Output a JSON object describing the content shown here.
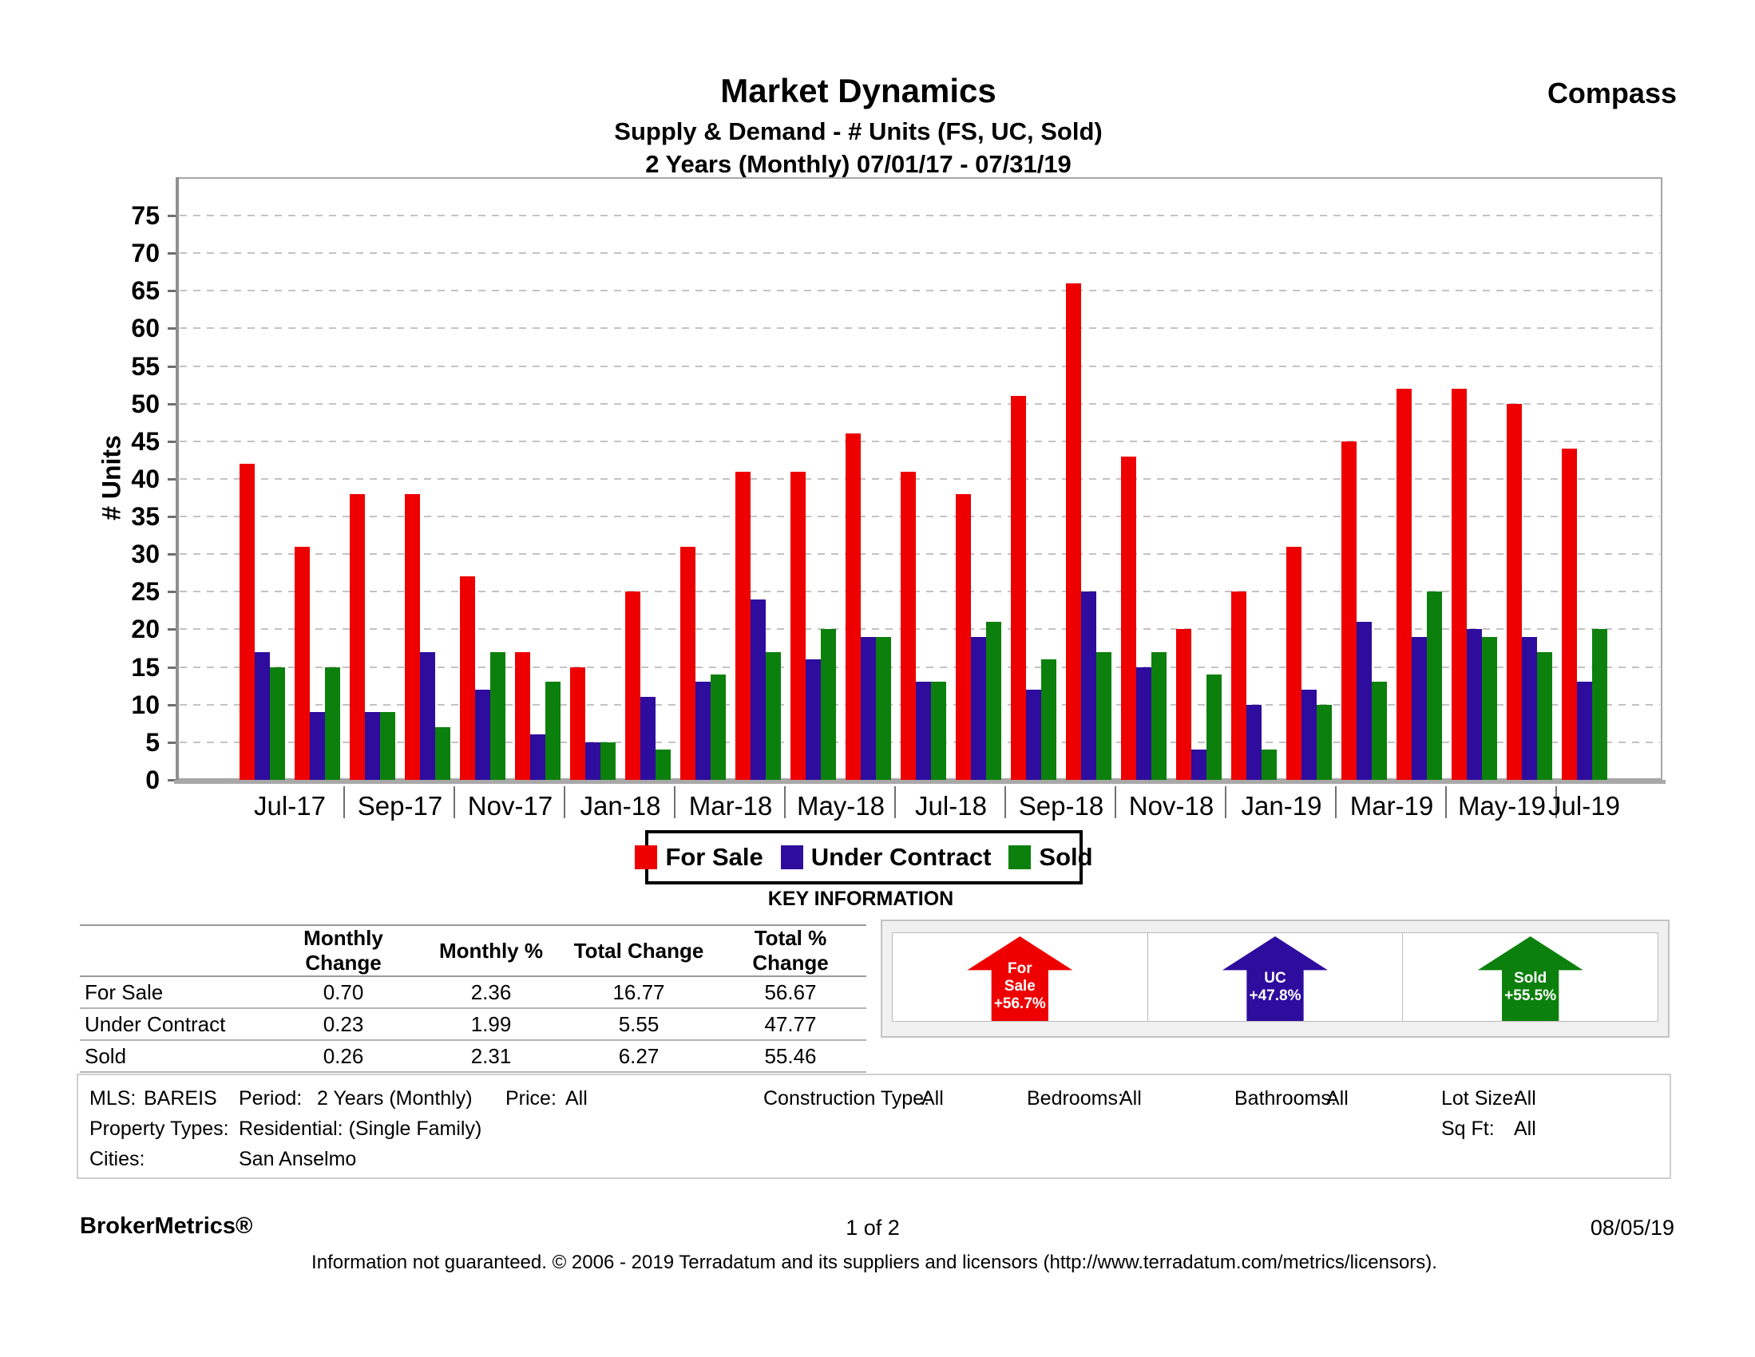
{
  "header": {
    "brand": "Compass",
    "title": "Market Dynamics",
    "subtitle": "Supply & Demand - # Units (FS, UC, Sold)",
    "period_line": "2 Years (Monthly) 07/01/17 - 07/31/19"
  },
  "chart_data": {
    "type": "bar",
    "title": "Market Dynamics",
    "xlabel": "",
    "ylabel": "# Units",
    "ylim": [
      0,
      75
    ],
    "ytick_step": 5,
    "ytick_labels": [
      "0",
      "5",
      "10",
      "15",
      "20",
      "25",
      "30",
      "35",
      "40",
      "45",
      "50",
      "55",
      "60",
      "65",
      "70",
      "75"
    ],
    "grid": true,
    "legend_position": "bottom",
    "categories": [
      "Jul-17",
      "Aug-17",
      "Sep-17",
      "Oct-17",
      "Nov-17",
      "Dec-17",
      "Jan-18",
      "Feb-18",
      "Mar-18",
      "Apr-18",
      "May-18",
      "Jun-18",
      "Jul-18",
      "Aug-18",
      "Sep-18",
      "Oct-18",
      "Nov-18",
      "Dec-18",
      "Jan-19",
      "Feb-19",
      "Mar-19",
      "Apr-19",
      "May-19",
      "Jun-19",
      "Jul-19"
    ],
    "xtick_labels": [
      "Jul-17",
      "Sep-17",
      "Nov-17",
      "Jan-18",
      "Mar-18",
      "May-18",
      "Jul-18",
      "Sep-18",
      "Nov-18",
      "Jan-19",
      "Mar-19",
      "May-19",
      "Jul-19"
    ],
    "series": [
      {
        "name": "For Sale",
        "color": "#ee0000",
        "values": [
          42,
          31,
          38,
          38,
          27,
          17,
          15,
          25,
          31,
          41,
          41,
          46,
          41,
          38,
          51,
          66,
          43,
          20,
          25,
          31,
          45,
          52,
          52,
          50,
          44
        ]
      },
      {
        "name": "Under Contract",
        "color": "#2e0c9e",
        "values": [
          17,
          9,
          9,
          17,
          12,
          6,
          5,
          11,
          13,
          24,
          16,
          19,
          13,
          19,
          12,
          25,
          15,
          4,
          10,
          12,
          21,
          19,
          20,
          19,
          13
        ]
      },
      {
        "name": "Sold",
        "color": "#0c800c",
        "values": [
          15,
          15,
          9,
          7,
          17,
          13,
          5,
          4,
          14,
          17,
          20,
          19,
          13,
          21,
          16,
          17,
          17,
          14,
          4,
          10,
          13,
          25,
          19,
          17,
          20
        ]
      }
    ]
  },
  "legend": {
    "items": [
      {
        "label": "For Sale",
        "color": "#ee0000"
      },
      {
        "label": "Under Contract",
        "color": "#2e0c9e"
      },
      {
        "label": "Sold",
        "color": "#0c800c"
      }
    ]
  },
  "key_information": {
    "heading": "KEY INFORMATION",
    "columns": [
      "Monthly Change",
      "Monthly %",
      "Total Change",
      "Total % Change"
    ],
    "rows": [
      {
        "label": "For Sale",
        "monthly_change": "0.70",
        "monthly_pct": "2.36",
        "total_change": "16.77",
        "total_pct_change": "56.67"
      },
      {
        "label": "Under Contract",
        "monthly_change": "0.23",
        "monthly_pct": "1.99",
        "total_change": "5.55",
        "total_pct_change": "47.77"
      },
      {
        "label": "Sold",
        "monthly_change": "0.26",
        "monthly_pct": "2.31",
        "total_change": "6.27",
        "total_pct_change": "55.46"
      }
    ],
    "arrows": [
      {
        "label_lines": [
          "For",
          "Sale"
        ],
        "pct": "+56.7%",
        "color": "#ee0000",
        "direction": "up"
      },
      {
        "label_lines": [
          "UC"
        ],
        "pct": "+47.8%",
        "color": "#2e0c9e",
        "direction": "up"
      },
      {
        "label_lines": [
          "Sold"
        ],
        "pct": "+55.5%",
        "color": "#0c800c",
        "direction": "up"
      }
    ]
  },
  "filters": {
    "mls_label": "MLS:",
    "mls_value": "BAREIS",
    "period_label": "Period:",
    "period_value": "2 Years (Monthly)",
    "price_label": "Price:",
    "price_value": "All",
    "construction_label": "Construction Type:",
    "construction_value": "All",
    "bedrooms_label": "Bedrooms:",
    "bedrooms_value": "All",
    "bathrooms_label": "Bathrooms:",
    "bathrooms_value": "All",
    "lot_size_label": "Lot Size:",
    "lot_size_value": "All",
    "property_types_label": "Property Types:",
    "property_types_value": "Residential: (Single Family)",
    "sq_ft_label": "Sq Ft:",
    "sq_ft_value": "All",
    "cities_label": "Cities:",
    "cities_value": "San Anselmo"
  },
  "footer": {
    "left": "BrokerMetrics®",
    "center": "1 of 2",
    "right": "08/05/19",
    "disclaimer": "Information not guaranteed.  © 2006 - 2019 Terradatum and its suppliers and licensors (http://www.terradatum.com/metrics/licensors)."
  }
}
